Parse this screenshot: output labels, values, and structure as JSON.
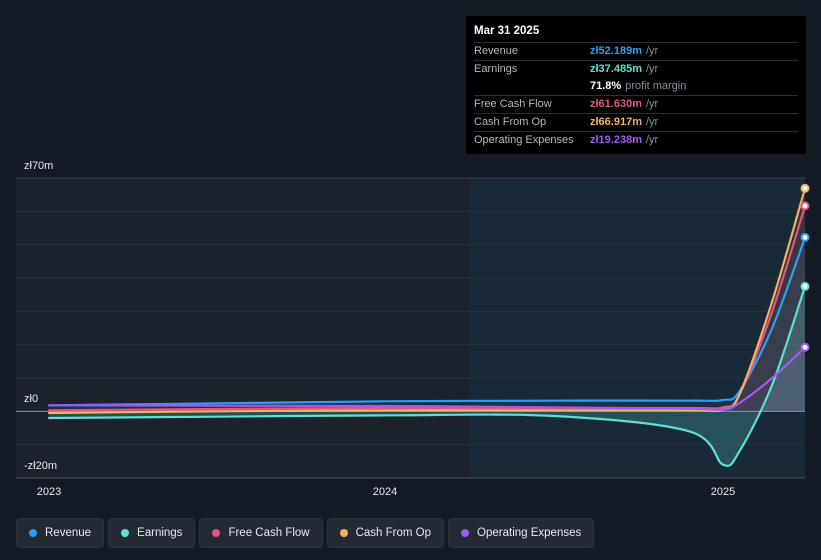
{
  "colors": {
    "revenue": "#2f9cf3",
    "earnings": "#5ee0d4",
    "fcf": "#e0567f",
    "cfo": "#f2b262",
    "opex": "#a259f0"
  },
  "tooltip": {
    "date": "Mar 31 2025",
    "rows": [
      {
        "label": "Revenue",
        "value": "zł52.189m",
        "unit": "/yr",
        "color": "#2f9cf3"
      },
      {
        "label": "Earnings",
        "value": "zł37.485m",
        "unit": "/yr",
        "color": "#5ee0d4"
      },
      {
        "label": "Free Cash Flow",
        "value": "zł61.630m",
        "unit": "/yr",
        "color": "#e0567f"
      },
      {
        "label": "Cash From Op",
        "value": "zł66.917m",
        "unit": "/yr",
        "color": "#f2b262"
      },
      {
        "label": "Operating Expenses",
        "value": "zł19.238m",
        "unit": "/yr",
        "color": "#a259f0"
      }
    ],
    "margin_value": "71.8%",
    "margin_label": "profit margin"
  },
  "chart_data": {
    "type": "line",
    "title": "",
    "ylim": [
      -20,
      70
    ],
    "y_tick_labels": [
      "zł70m",
      "zł0",
      "-zł20m"
    ],
    "x_tick_labels": [
      "2023",
      "2024",
      "2025"
    ],
    "x": [
      2023.0,
      2023.5,
      2024.0,
      2024.5,
      2024.9,
      2025.0,
      2025.05,
      2025.15,
      2025.25
    ],
    "forecast_shade_from": 2024.25,
    "series": [
      {
        "name": "Revenue",
        "key": "revenue",
        "values": [
          1.8,
          2.4,
          3.0,
          3.2,
          3.2,
          3.4,
          6.0,
          25,
          52.189
        ]
      },
      {
        "name": "Earnings",
        "key": "earnings",
        "values": [
          -2.0,
          -1.6,
          -1.2,
          -1.4,
          -6,
          -16,
          -12,
          8,
          37.485
        ]
      },
      {
        "name": "Free Cash Flow",
        "key": "fcf",
        "values": [
          0.3,
          0.7,
          1.0,
          1.0,
          1.0,
          1.2,
          5.0,
          30,
          61.63
        ]
      },
      {
        "name": "Cash From Op",
        "key": "cfo",
        "values": [
          -0.5,
          0.0,
          0.3,
          0.3,
          0.3,
          0.5,
          5.0,
          33,
          66.917
        ]
      },
      {
        "name": "Operating Expenses",
        "key": "opex",
        "values": [
          1.8,
          1.7,
          1.6,
          1.2,
          0.8,
          0.5,
          2.5,
          10,
          19.238
        ]
      }
    ]
  },
  "legend": [
    {
      "label": "Revenue",
      "key": "revenue"
    },
    {
      "label": "Earnings",
      "key": "earnings"
    },
    {
      "label": "Free Cash Flow",
      "key": "fcf"
    },
    {
      "label": "Cash From Op",
      "key": "cfo"
    },
    {
      "label": "Operating Expenses",
      "key": "opex"
    }
  ]
}
